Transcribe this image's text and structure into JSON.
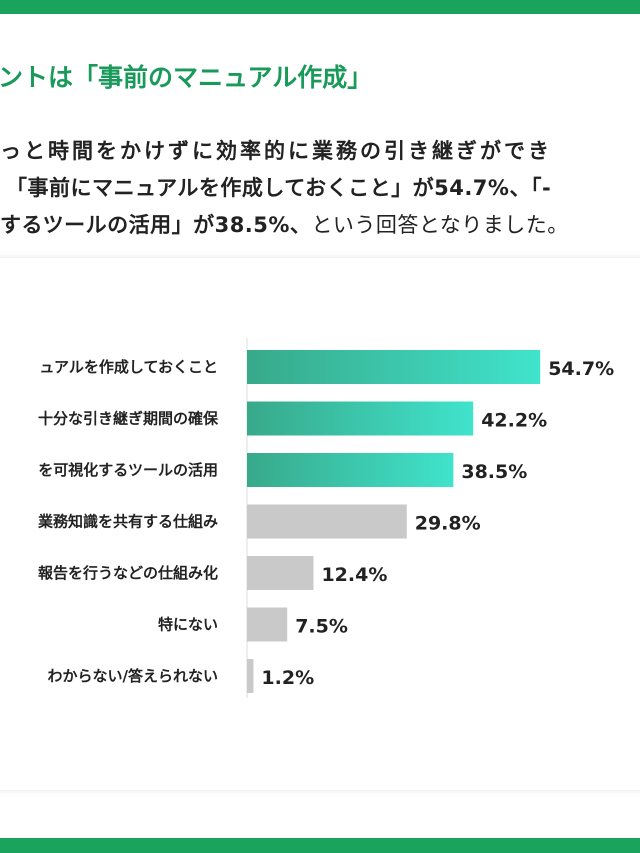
{
  "heading": "ントは「事前のマニュアル作成」",
  "body": {
    "line1": "っと時間をかけずに効率的に業務の引き継ぎができ",
    "line2_bold": "「事前にマニュアルを作成しておくこと」が54.7%、「-",
    "line3_bold": "するツールの活用」が38.5%、",
    "line3_regular": "という回答となりました。"
  },
  "colors": {
    "accent": "#1aa35c",
    "bar_grad_start": "#38a98a",
    "bar_grad_end": "#40e3cc",
    "bar_gray": "#c9c9c9"
  },
  "chart_data": {
    "type": "bar",
    "orientation": "horizontal",
    "categories": [
      "ュアルを作成しておくこと",
      "十分な引き継ぎ期間の確保",
      "を可視化するツールの活用",
      "業務知識を共有する仕組み",
      "報告を行うなどの仕組み化",
      "特にない",
      "わからない/答えられない"
    ],
    "values": [
      54.7,
      42.2,
      38.5,
      29.8,
      12.4,
      7.5,
      1.2
    ],
    "labels": [
      "54.7%",
      "42.2%",
      "38.5%",
      "29.8%",
      "12.4%",
      "7.5%",
      "1.2%"
    ],
    "highlighted": [
      true,
      true,
      true,
      false,
      false,
      false,
      false
    ],
    "xlim": [
      0,
      60
    ],
    "grid": false
  }
}
